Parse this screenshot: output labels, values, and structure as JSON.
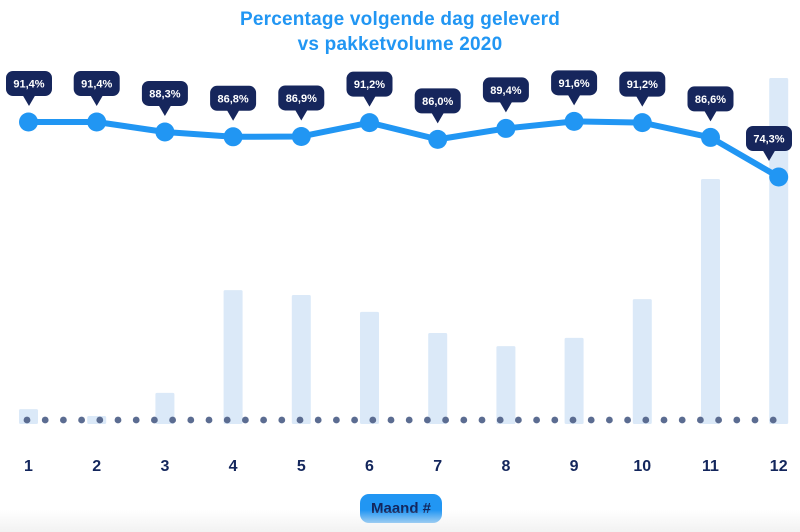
{
  "chart_data": {
    "type": "combo",
    "title": "Percentage volgende dag geleverd vs pakketvolume 2020",
    "title_lines": [
      "Percentage volgende dag geleverd",
      "vs pakketvolume 2020"
    ],
    "xlabel": "Maand #",
    "categories": [
      "1",
      "2",
      "3",
      "4",
      "5",
      "6",
      "7",
      "8",
      "9",
      "10",
      "11",
      "12"
    ],
    "series": [
      {
        "name": "Percentage volgende dag geleverd",
        "type": "line",
        "unit": "%",
        "values": [
          91.4,
          91.4,
          88.3,
          86.8,
          86.9,
          91.2,
          86.0,
          89.4,
          91.6,
          91.2,
          86.6,
          74.3
        ],
        "point_labels": [
          "91,4%",
          "91,4%",
          "88,3%",
          "86,8%",
          "86,9%",
          "91,2%",
          "86,0%",
          "89,4%",
          "91,6%",
          "91,2%",
          "86,6%",
          "74,3%"
        ]
      },
      {
        "name": "Pakketvolume 2020",
        "type": "bar",
        "values_relative_to_max": [
          0.043,
          0.023,
          0.09,
          0.387,
          0.373,
          0.324,
          0.263,
          0.225,
          0.249,
          0.361,
          0.708,
          1.0
        ]
      }
    ],
    "legend_position": "none",
    "grid": "off",
    "y_axis": "hidden",
    "baseline_style": "dotted"
  },
  "colors": {
    "accent_blue": "#2196f3",
    "badge_navy": "#16265c",
    "badge_text": "#ffffff",
    "bar_fill": "#dbe9f8",
    "dot_slate": "#5b6c91",
    "label_navy": "#13265c",
    "background": "#ffffff",
    "bottom_strip": "#f2f2f2"
  }
}
